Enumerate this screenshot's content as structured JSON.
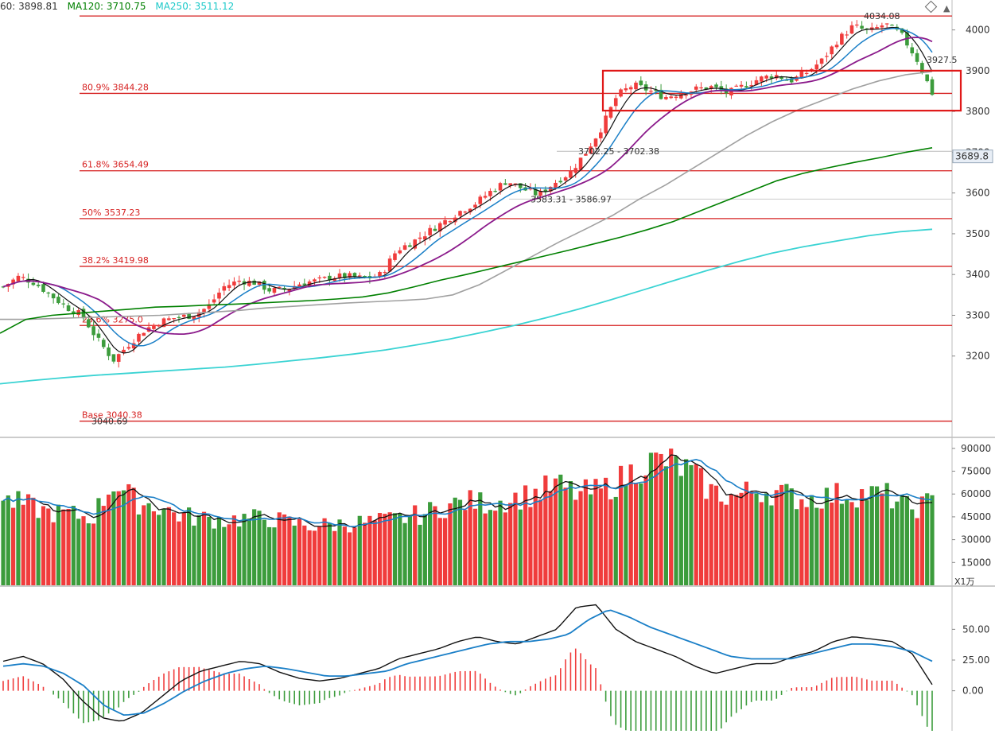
{
  "legend": {
    "ma_a": {
      "label": "60: 3898.81",
      "color": "#333333"
    },
    "ma120": {
      "label": "MA120: 3710.75",
      "color": "#008000"
    },
    "ma250": {
      "label": "MA250: 3511.12",
      "color": "#1cc9c9"
    }
  },
  "colors": {
    "up": "#f03c3c",
    "down": "#3c9c3c",
    "fib_line": "#d62020",
    "box": "#e01818",
    "ma5": "#111111",
    "ma10": "#1a7fc7",
    "ma20": "#8b1a8b",
    "ma60": "#a0a0a0",
    "ma120": "#008000",
    "ma250": "#3ad3d3",
    "axis_text": "#333333",
    "grid": "#d8d8d8"
  },
  "chart_data": [
    {
      "type": "candlestick",
      "panel": "price",
      "yaxis_ticks": [
        "4000",
        "3900",
        "3800",
        "3700",
        "3600",
        "3500",
        "3400",
        "3300",
        "3200"
      ],
      "ylim": [
        3020,
        4050
      ],
      "fib_levels": [
        {
          "label": "",
          "value": 4034.08
        },
        {
          "label": "80.9% 3844.28",
          "value": 3844.28
        },
        {
          "label": "61.8% 3654.49",
          "value": 3654.49
        },
        {
          "label": "50% 3537.23",
          "value": 3537.23
        },
        {
          "label": "38.2% 3419.98",
          "value": 3419.98
        },
        {
          "label": "23.6% 3275.0",
          "value": 3275.0
        },
        {
          "label": "Base 3040.38",
          "value": 3040.38
        }
      ],
      "annotations": [
        {
          "text": "4034.08",
          "x": 1086,
          "value": 4034.08
        },
        {
          "text": "3927.5",
          "x": 1165,
          "value": 3927.5
        },
        {
          "text": "3702.25 - 3702.38",
          "x": 727,
          "value": 3702.3
        },
        {
          "text": "3583.31 - 3586.97",
          "x": 667,
          "value": 3585.0
        },
        {
          "text": "3040.69",
          "x": 115,
          "value": 3040.69
        }
      ],
      "current_price_label": "3689.8",
      "current_price": 3689.8,
      "highlight_box": {
        "low": 3802,
        "high": 3900
      },
      "ma_series": [
        {
          "name": "MA60",
          "values": [
            3290,
            3290,
            3292,
            3294,
            3296,
            3298,
            3300,
            3304,
            3308,
            3312,
            3318,
            3322,
            3326,
            3330,
            3333,
            3336,
            3340,
            3350,
            3375,
            3410,
            3445,
            3480,
            3512,
            3545,
            3585,
            3620,
            3660,
            3700,
            3740,
            3775,
            3805,
            3830,
            3855,
            3875,
            3890,
            3898
          ]
        },
        {
          "name": "MA120",
          "values": [
            3256,
            3290,
            3300,
            3305,
            3310,
            3315,
            3320,
            3322,
            3325,
            3327,
            3330,
            3333,
            3336,
            3340,
            3345,
            3355,
            3370,
            3386,
            3400,
            3415,
            3430,
            3445,
            3460,
            3476,
            3492,
            3510,
            3530,
            3555,
            3580,
            3605,
            3630,
            3648,
            3662,
            3675,
            3687,
            3700,
            3711
          ]
        },
        {
          "name": "MA250",
          "values": [
            3132,
            3140,
            3147,
            3153,
            3158,
            3163,
            3168,
            3173,
            3180,
            3188,
            3196,
            3205,
            3215,
            3228,
            3242,
            3258,
            3275,
            3294,
            3315,
            3338,
            3362,
            3386,
            3410,
            3432,
            3452,
            3468,
            3482,
            3495,
            3505,
            3511
          ]
        }
      ]
    },
    {
      "type": "bar",
      "panel": "volume",
      "yaxis_ticks": [
        "90000",
        "75000",
        "60000",
        "45000",
        "30000",
        "15000"
      ],
      "unit_label": "X1万",
      "ylim": [
        0,
        92000
      ]
    },
    {
      "type": "bar",
      "panel": "macd",
      "yaxis_ticks": [
        "50.00",
        "25.00",
        "0.00"
      ],
      "ylim": [
        -30,
        80
      ]
    }
  ]
}
